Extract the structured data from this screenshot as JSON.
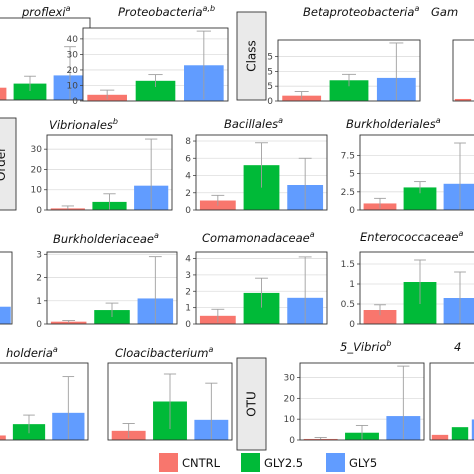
{
  "colors": {
    "CNTRL": "#F8766D",
    "GLY2.5": "#00BA38",
    "GLY5": "#619CFF"
  },
  "strips": [
    {
      "label": "Class"
    },
    {
      "label": "Order"
    },
    {
      "label": "OTU"
    }
  ],
  "legend": {
    "items": [
      {
        "label": "CNTRL",
        "color": "#F8766D"
      },
      {
        "label": "GLY2.5",
        "color": "#00BA38"
      },
      {
        "label": "GLY5",
        "color": "#619CFF"
      }
    ]
  },
  "chart_data": [
    {
      "type": "bar",
      "title": "proflexi",
      "sup": "a",
      "categories": [
        "CNTRL",
        "GLY2.5",
        "GLY5"
      ],
      "values": [
        0.3,
        0.4,
        0.6
      ],
      "errors": [
        0.1,
        0.18,
        0.7
      ],
      "ylim": [
        0,
        2
      ],
      "yticks": []
    },
    {
      "type": "bar",
      "title": "Proteobacteria",
      "sup": "a,b",
      "categories": [
        "CNTRL",
        "GLY2.5",
        "GLY5"
      ],
      "values": [
        4,
        13,
        23
      ],
      "errors": [
        3,
        4,
        22
      ],
      "ylim": [
        0,
        47
      ],
      "yticks": [
        0,
        10,
        20,
        30,
        40
      ]
    },
    {
      "type": "bar",
      "title": "Betaproteobacteria",
      "sup": "a",
      "categories": [
        "CNTRL",
        "GLY2.5",
        "GLY5"
      ],
      "values": [
        0.9,
        3.5,
        3.9
      ],
      "errors": [
        0.7,
        1.0,
        5.9
      ],
      "ylim": [
        0,
        10.3
      ],
      "yticks": [
        0,
        2.5,
        5.0,
        7.5
      ]
    },
    {
      "type": "bar",
      "title": "Gam",
      "sup": "",
      "categories": [
        "CNTRL",
        "GLY2.5",
        "GLY5"
      ],
      "values": [
        1,
        2,
        3
      ],
      "errors": [
        0,
        0,
        0
      ],
      "ylim": [
        0,
        30
      ],
      "yticks": []
    },
    {
      "type": "bar",
      "title": "Vibrionales",
      "sup": "b",
      "categories": [
        "CNTRL",
        "GLY2.5",
        "GLY5"
      ],
      "values": [
        0.8,
        4,
        12
      ],
      "errors": [
        1.2,
        4,
        23
      ],
      "ylim": [
        0,
        37
      ],
      "yticks": [
        0,
        10,
        20,
        30
      ]
    },
    {
      "type": "bar",
      "title": "Bacillales",
      "sup": "a",
      "categories": [
        "CNTRL",
        "GLY2.5",
        "GLY5"
      ],
      "values": [
        1.1,
        5.2,
        2.9
      ],
      "errors": [
        0.6,
        2.6,
        3.1
      ],
      "ylim": [
        0,
        8.7
      ],
      "yticks": [
        0,
        2,
        4,
        6,
        8
      ]
    },
    {
      "type": "bar",
      "title": "Burkholderiales",
      "sup": "a",
      "categories": [
        "CNTRL",
        "GLY2.5",
        "GLY5"
      ],
      "values": [
        0.9,
        3.1,
        3.6
      ],
      "errors": [
        0.7,
        0.8,
        5.6
      ],
      "ylim": [
        0,
        10.3
      ],
      "yticks": [
        0.0,
        2.5,
        5.0,
        7.5
      ]
    },
    {
      "type": "bar",
      "title": "",
      "sup": "",
      "categories": [
        "CNTRL",
        "GLY2.5",
        "GLY5"
      ],
      "values": [
        0.1,
        0.3,
        0.6
      ],
      "errors": [
        0,
        0,
        0
      ],
      "ylim": [
        0,
        2.5
      ],
      "yticks": []
    },
    {
      "type": "bar",
      "title": "Burkholderiaceae",
      "sup": "a",
      "categories": [
        "CNTRL",
        "GLY2.5",
        "GLY5"
      ],
      "values": [
        0.1,
        0.6,
        1.1
      ],
      "errors": [
        0.05,
        0.3,
        1.8
      ],
      "ylim": [
        0,
        3.1
      ],
      "yticks": [
        0,
        1,
        2,
        3
      ]
    },
    {
      "type": "bar",
      "title": "Comamonadaceae",
      "sup": "a",
      "categories": [
        "CNTRL",
        "GLY2.5",
        "GLY5"
      ],
      "values": [
        0.5,
        1.9,
        1.6
      ],
      "errors": [
        0.4,
        0.9,
        2.5
      ],
      "ylim": [
        0,
        4.4
      ],
      "yticks": [
        0,
        1,
        2,
        3,
        4
      ]
    },
    {
      "type": "bar",
      "title": "Enterococcaceae",
      "sup": "a",
      "categories": [
        "CNTRL",
        "GLY2.5",
        "GLY5"
      ],
      "values": [
        0.35,
        1.05,
        0.65
      ],
      "errors": [
        0.13,
        0.55,
        0.65
      ],
      "ylim": [
        0,
        1.8
      ],
      "yticks": [
        0.0,
        0.5,
        1.0,
        1.5
      ]
    },
    {
      "type": "bar",
      "title": "holderia",
      "sup": "a",
      "categories": [
        "CNTRL",
        "GLY2.5",
        "GLY5"
      ],
      "values": [
        0.1,
        0.35,
        0.6
      ],
      "errors": [
        0.05,
        0.2,
        0.8
      ],
      "ylim": [
        0,
        1.7
      ],
      "yticks": []
    },
    {
      "type": "bar",
      "title": "Cloacibacterium",
      "sup": "a",
      "categories": [
        "CNTRL",
        "GLY2.5",
        "GLY5"
      ],
      "values": [
        0.25,
        1.05,
        0.55
      ],
      "errors": [
        0.2,
        0.75,
        1.0
      ],
      "ylim": [
        0,
        2.1
      ],
      "yticks": []
    },
    {
      "type": "bar",
      "title": "5_Vibrio",
      "sup": "b",
      "categories": [
        "CNTRL",
        "GLY2.5",
        "GLY5"
      ],
      "values": [
        0.5,
        3.5,
        11.5
      ],
      "errors": [
        0.7,
        3.5,
        24
      ],
      "ylim": [
        0,
        37
      ],
      "yticks": [
        0,
        10,
        20,
        30
      ]
    },
    {
      "type": "bar",
      "title": "4",
      "sup": "",
      "categories": [
        "CNTRL",
        "GLY2.5",
        "GLY5"
      ],
      "values": [
        0.2,
        0.5,
        0.8
      ],
      "errors": [
        0,
        0,
        0
      ],
      "ylim": [
        0,
        3
      ],
      "yticks": []
    }
  ]
}
